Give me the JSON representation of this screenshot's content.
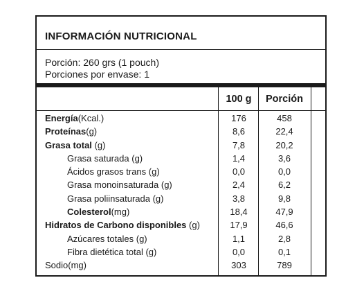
{
  "label": {
    "title": "INFORMACIÓN NUTRICIONAL",
    "serving_size": "Porción: 260 grs (1 pouch)",
    "servings_per_container": "Porciones por envase: 1"
  },
  "columns": {
    "per_100g": "100 g",
    "per_serving": "Porción"
  },
  "rows": [
    {
      "name": "Energía",
      "unit": "(Kcal.)",
      "v100": "176",
      "vpor": "458"
    },
    {
      "name": "Proteínas",
      "unit": "(g)",
      "v100": "8,6",
      "vpor": "22,4"
    },
    {
      "name": "Grasa total",
      "unit": "(g)",
      "v100": "7,8",
      "vpor": "20,2"
    },
    {
      "name": "Grasa saturada",
      "unit": "(g)",
      "v100": "1,4",
      "vpor": "3,6"
    },
    {
      "name": "Ácidos grasos trans",
      "unit": "(g)",
      "v100": "0,0",
      "vpor": "0,0"
    },
    {
      "name": "Grasa monoinsaturada",
      "unit": "(g)",
      "v100": "2,4",
      "vpor": "6,2"
    },
    {
      "name": "Grasa poliinsaturada",
      "unit": "(g)",
      "v100": "3,8",
      "vpor": "9,8"
    },
    {
      "name": "Colesterol",
      "unit": "(mg)",
      "v100": "18,4",
      "vpor": "47,9"
    },
    {
      "name": "Hidratos de Carbono disponibles",
      "unit": "(g)",
      "v100": "17,9",
      "vpor": "46,6"
    },
    {
      "name": "Azúcares totales",
      "unit": "(g)",
      "v100": "1,1",
      "vpor": "2,8"
    },
    {
      "name": "Fibra dietética total",
      "unit": "(g)",
      "v100": "0,0",
      "vpor": "0,1"
    },
    {
      "name": "Sodio",
      "unit": "(mg)",
      "v100": "303",
      "vpor": "789"
    }
  ]
}
